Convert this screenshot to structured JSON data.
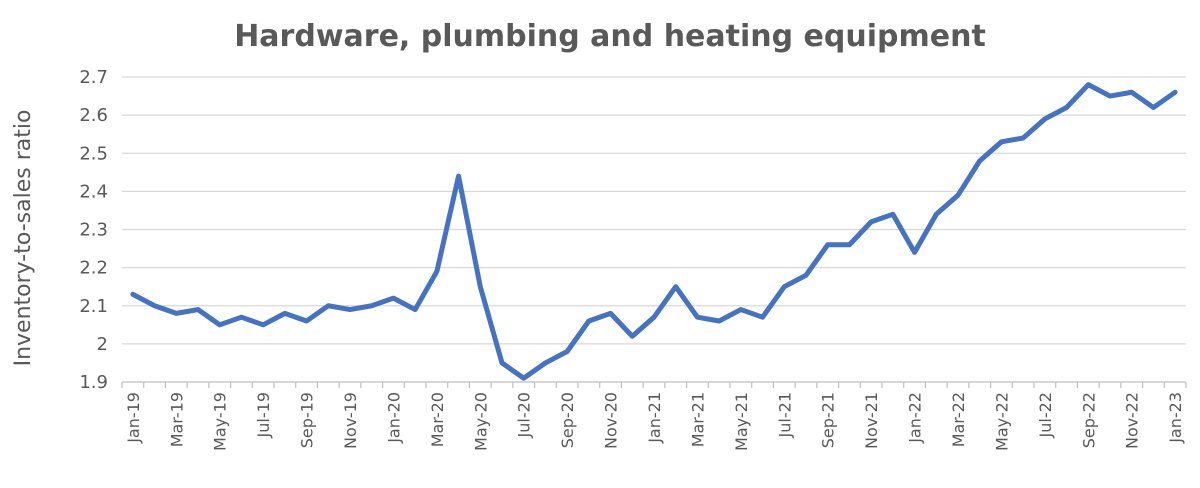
{
  "chart_data": {
    "type": "line",
    "title": "Hardware, plumbing and heating equipment",
    "xlabel": "",
    "ylabel": "Inventory-to-sales ratio",
    "ylim": [
      1.9,
      2.7
    ],
    "yticks": [
      "1.9",
      "2",
      "2.1",
      "2.2",
      "2.3",
      "2.4",
      "2.5",
      "2.6",
      "2.7"
    ],
    "grid": true,
    "legend": "none",
    "line_color": "#4472c4",
    "x": [
      "Jan-19",
      "Feb-19",
      "Mar-19",
      "Apr-19",
      "May-19",
      "Jun-19",
      "Jul-19",
      "Aug-19",
      "Sep-19",
      "Oct-19",
      "Nov-19",
      "Dec-19",
      "Jan-20",
      "Feb-20",
      "Mar-20",
      "Apr-20",
      "May-20",
      "Jun-20",
      "Jul-20",
      "Aug-20",
      "Sep-20",
      "Oct-20",
      "Nov-20",
      "Dec-20",
      "Jan-21",
      "Feb-21",
      "Mar-21",
      "Apr-21",
      "May-21",
      "Jun-21",
      "Jul-21",
      "Aug-21",
      "Sep-21",
      "Oct-21",
      "Nov-21",
      "Dec-21",
      "Jan-22",
      "Feb-22",
      "Mar-22",
      "Apr-22",
      "May-22",
      "Jun-22",
      "Jul-22",
      "Aug-22",
      "Sep-22",
      "Oct-22",
      "Nov-22",
      "Dec-22",
      "Jan-23"
    ],
    "x_tick_labels": [
      "Jan-19",
      "Mar-19",
      "May-19",
      "Jul-19",
      "Sep-19",
      "Nov-19",
      "Jan-20",
      "Mar-20",
      "May-20",
      "Jul-20",
      "Sep-20",
      "Nov-20",
      "Jan-21",
      "Mar-21",
      "May-21",
      "Jul-21",
      "Sep-21",
      "Nov-21",
      "Jan-22",
      "Mar-22",
      "May-22",
      "Jul-22",
      "Sep-22",
      "Nov-22",
      "Jan-23"
    ],
    "series": [
      {
        "values": [
          2.13,
          2.1,
          2.08,
          2.09,
          2.05,
          2.07,
          2.05,
          2.08,
          2.06,
          2.1,
          2.09,
          2.1,
          2.12,
          2.09,
          2.19,
          2.44,
          2.15,
          1.95,
          1.91,
          1.95,
          1.98,
          2.06,
          2.08,
          2.02,
          2.07,
          2.15,
          2.07,
          2.06,
          2.09,
          2.07,
          2.15,
          2.18,
          2.26,
          2.26,
          2.32,
          2.34,
          2.24,
          2.34,
          2.39,
          2.48,
          2.53,
          2.54,
          2.59,
          2.62,
          2.68,
          2.65,
          2.66,
          2.62,
          2.66
        ]
      }
    ]
  }
}
